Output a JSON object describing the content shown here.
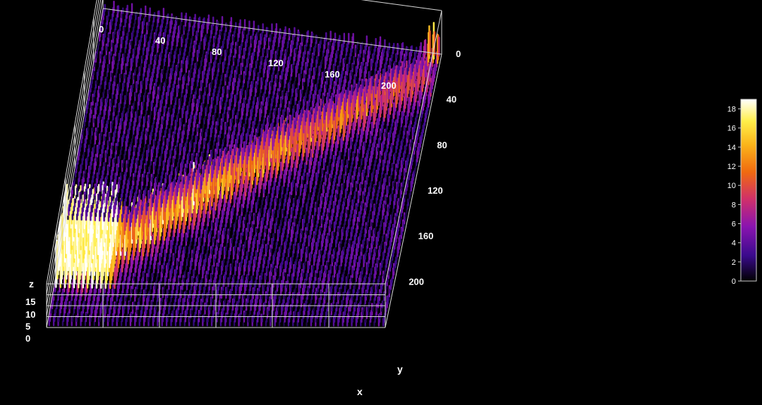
{
  "chart_data": {
    "type": "surface3d",
    "colormap": "gnuplot-hot (black-purple-red-orange-yellow-white)",
    "x_axis": {
      "label": "x",
      "ticks": [
        0,
        40,
        80,
        120,
        160,
        200
      ],
      "range": [
        0,
        240
      ]
    },
    "y_axis": {
      "label": "y",
      "ticks": [
        0,
        40,
        80,
        120,
        160,
        200
      ],
      "range": [
        0,
        240
      ]
    },
    "z_axis": {
      "label": "z",
      "ticks": [
        0,
        5,
        10,
        15
      ],
      "range": [
        0,
        20
      ]
    },
    "colorbar": {
      "ticks": [
        0,
        2,
        4,
        6,
        8,
        10,
        12,
        14,
        16,
        18
      ],
      "range": [
        0,
        19
      ],
      "colors": [
        "#000000",
        "#3a0a8c",
        "#8a14b0",
        "#d0306a",
        "#f06a10",
        "#fbb41a",
        "#ffef4a",
        "#ffffff"
      ]
    },
    "background_level": 3,
    "features": [
      {
        "description": "saturated peak",
        "x_range": [
          0,
          40
        ],
        "y_range": [
          170,
          210
        ],
        "z": 19
      },
      {
        "description": "diagonal ridge",
        "from": [
          20,
          200
        ],
        "to": [
          230,
          30
        ],
        "z_peak": 14
      },
      {
        "description": "corner spike",
        "x": 235,
        "y": 5,
        "z": 18
      }
    ]
  }
}
